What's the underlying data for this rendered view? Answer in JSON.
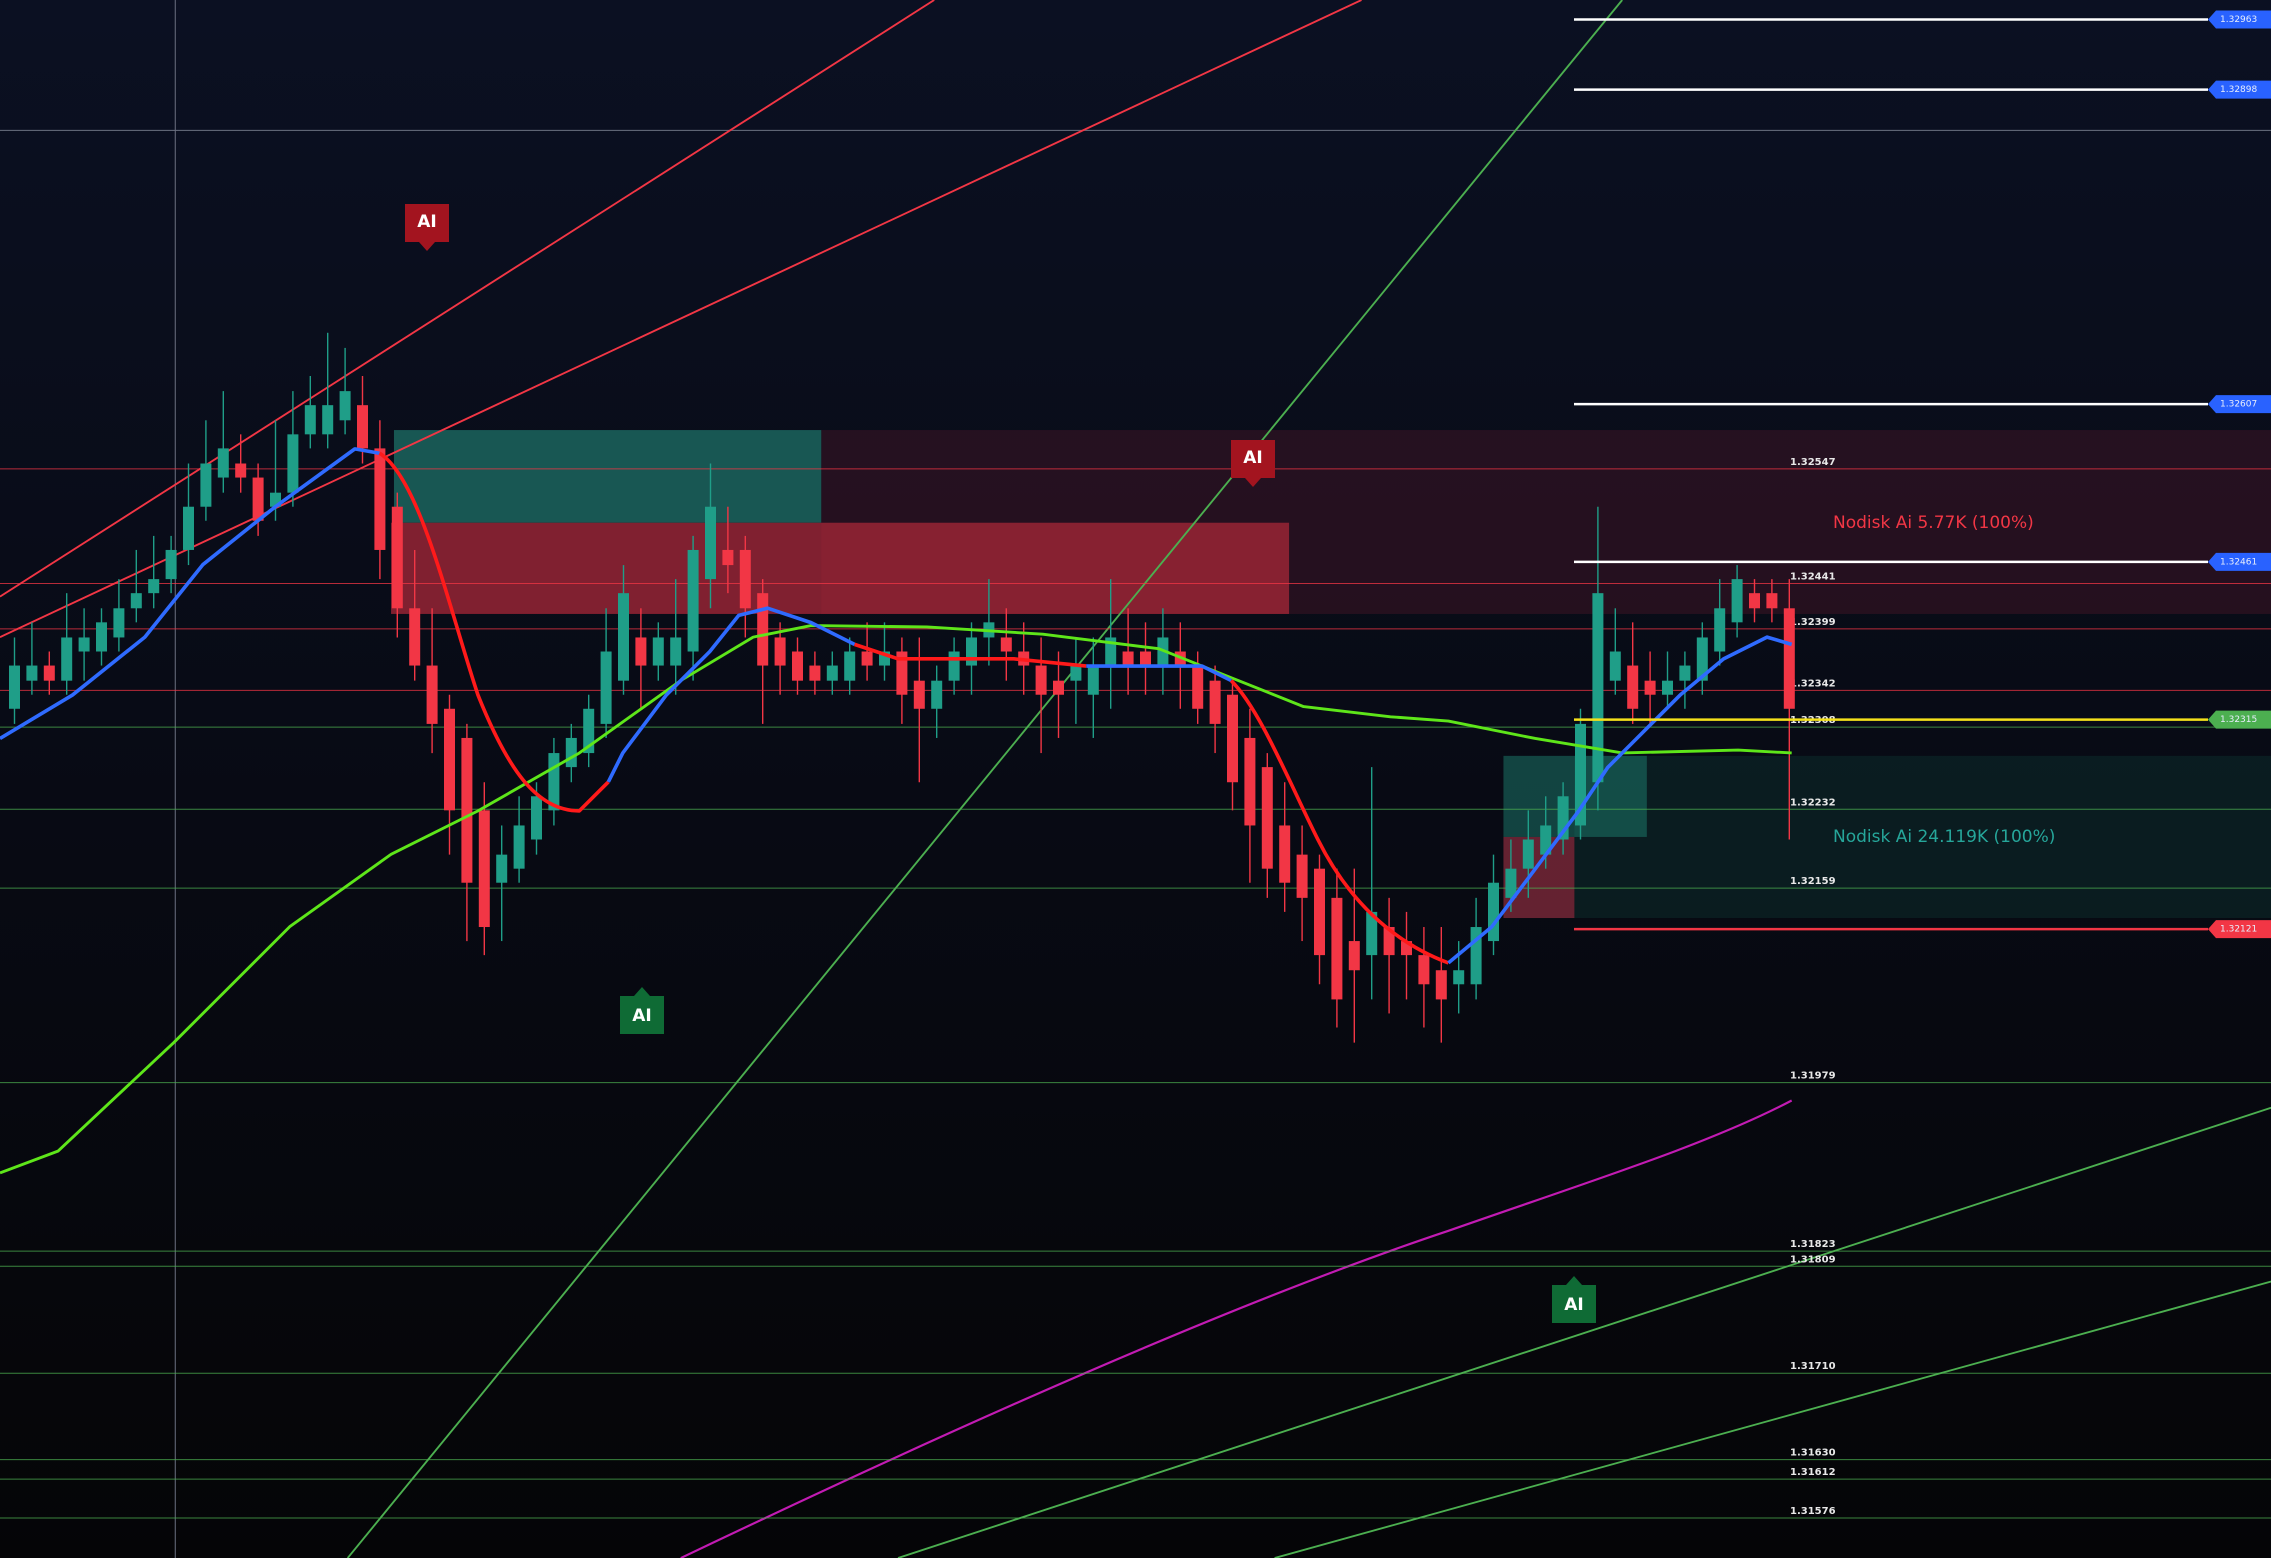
{
  "chart_data": {
    "type": "candlestick",
    "ylim": [
      1.31539,
      1.32981
    ],
    "up_color": "#1f9e88",
    "down_color": "#f23645",
    "candles": {
      "open": [
        1.32325,
        1.32351,
        1.32365,
        1.32351,
        1.32378,
        1.32378,
        1.32391,
        1.32418,
        1.32432,
        1.32445,
        1.32472,
        1.32512,
        1.32539,
        1.32552,
        1.32539,
        1.32512,
        1.32525,
        1.32579,
        1.32579,
        1.32592,
        1.32606,
        1.32566,
        1.32512,
        1.32418,
        1.32365,
        1.32325,
        1.32298,
        1.32231,
        1.32164,
        1.32177,
        1.32204,
        1.32231,
        1.32271,
        1.32284,
        1.32311,
        1.32351,
        1.32391,
        1.32365,
        1.32365,
        1.32378,
        1.32445,
        1.32472,
        1.32472,
        1.32432,
        1.32391,
        1.32378,
        1.32365,
        1.32351,
        1.32351,
        1.32378,
        1.32365,
        1.32378,
        1.32351,
        1.32325,
        1.32351,
        1.32365,
        1.32391,
        1.32391,
        1.32378,
        1.32365,
        1.32351,
        1.32351,
        1.32338,
        1.32365,
        1.32378,
        1.32378,
        1.32365,
        1.32378,
        1.32365,
        1.32351,
        1.32338,
        1.32298,
        1.32271,
        1.32217,
        1.3219,
        1.32177,
        1.3215,
        1.3211,
        1.32097,
        1.32123,
        1.3211,
        1.32097,
        1.32083,
        1.3207,
        1.3207,
        1.3211,
        1.3215,
        1.32177,
        1.3219,
        1.32204,
        1.32217,
        1.32257,
        1.32351,
        1.32365,
        1.32351,
        1.32338,
        1.32351,
        1.32351,
        1.32378,
        1.32405,
        1.32432,
        1.32432,
        1.32418
      ],
      "high": [
        1.32391,
        1.32405,
        1.32378,
        1.32432,
        1.32418,
        1.32418,
        1.32445,
        1.32472,
        1.32485,
        1.32485,
        1.32552,
        1.32592,
        1.32619,
        1.32579,
        1.32552,
        1.32592,
        1.32619,
        1.32633,
        1.32673,
        1.32659,
        1.32633,
        1.32592,
        1.32525,
        1.32472,
        1.32418,
        1.32338,
        1.32311,
        1.32257,
        1.32217,
        1.32244,
        1.32257,
        1.32298,
        1.32311,
        1.32338,
        1.32418,
        1.32458,
        1.32418,
        1.32405,
        1.32445,
        1.32485,
        1.32552,
        1.32512,
        1.32485,
        1.32445,
        1.32405,
        1.32391,
        1.32378,
        1.32378,
        1.32391,
        1.32405,
        1.32405,
        1.32391,
        1.32391,
        1.32365,
        1.32391,
        1.32405,
        1.32445,
        1.32418,
        1.32405,
        1.32391,
        1.32378,
        1.32391,
        1.32391,
        1.32445,
        1.32418,
        1.32405,
        1.32418,
        1.32405,
        1.32378,
        1.32365,
        1.32351,
        1.32325,
        1.32284,
        1.32257,
        1.32217,
        1.3219,
        1.32177,
        1.32177,
        1.32271,
        1.3215,
        1.32137,
        1.32123,
        1.32123,
        1.3211,
        1.3215,
        1.3219,
        1.32204,
        1.32231,
        1.32244,
        1.32257,
        1.32325,
        1.32512,
        1.32418,
        1.32405,
        1.32378,
        1.32378,
        1.32378,
        1.32405,
        1.32445,
        1.32458,
        1.32445,
        1.32445,
        1.32445
      ],
      "low": [
        1.32311,
        1.32338,
        1.32338,
        1.32338,
        1.32351,
        1.32365,
        1.32378,
        1.32405,
        1.32418,
        1.32432,
        1.32458,
        1.32499,
        1.32525,
        1.32525,
        1.32485,
        1.32499,
        1.32512,
        1.32566,
        1.32566,
        1.32579,
        1.32552,
        1.32445,
        1.32391,
        1.32351,
        1.32284,
        1.3219,
        1.3211,
        1.32097,
        1.3211,
        1.32164,
        1.3219,
        1.32217,
        1.32257,
        1.32271,
        1.32298,
        1.32338,
        1.32325,
        1.32351,
        1.32338,
        1.32351,
        1.32418,
        1.32432,
        1.32391,
        1.32311,
        1.32338,
        1.32338,
        1.32338,
        1.32338,
        1.32338,
        1.32351,
        1.32351,
        1.32311,
        1.32257,
        1.32298,
        1.32338,
        1.32338,
        1.32365,
        1.32351,
        1.32338,
        1.32284,
        1.32298,
        1.32311,
        1.32298,
        1.32325,
        1.32338,
        1.32338,
        1.32338,
        1.32325,
        1.32311,
        1.32284,
        1.32231,
        1.32164,
        1.3215,
        1.32137,
        1.3211,
        1.3207,
        1.3203,
        1.32016,
        1.32056,
        1.32043,
        1.32056,
        1.3203,
        1.32016,
        1.32043,
        1.32056,
        1.32097,
        1.32137,
        1.3215,
        1.32177,
        1.3219,
        1.32204,
        1.32231,
        1.32338,
        1.32311,
        1.32311,
        1.32325,
        1.32325,
        1.32338,
        1.32365,
        1.32391,
        1.32405,
        1.32405,
        1.32204
      ],
      "close": [
        1.32365,
        1.32365,
        1.32351,
        1.32391,
        1.32391,
        1.32405,
        1.32418,
        1.32432,
        1.32445,
        1.32472,
        1.32512,
        1.32552,
        1.32566,
        1.32539,
        1.32499,
        1.32525,
        1.32579,
        1.32606,
        1.32606,
        1.32619,
        1.32566,
        1.32472,
        1.32418,
        1.32365,
        1.32311,
        1.32231,
        1.32164,
        1.32123,
        1.3219,
        1.32217,
        1.32244,
        1.32284,
        1.32298,
        1.32325,
        1.32378,
        1.32432,
        1.32365,
        1.32391,
        1.32391,
        1.32472,
        1.32512,
        1.32458,
        1.32418,
        1.32365,
        1.32365,
        1.32351,
        1.32351,
        1.32365,
        1.32378,
        1.32365,
        1.32378,
        1.32338,
        1.32325,
        1.32351,
        1.32378,
        1.32391,
        1.32405,
        1.32378,
        1.32365,
        1.32338,
        1.32338,
        1.32365,
        1.32365,
        1.32391,
        1.32365,
        1.32365,
        1.32391,
        1.32365,
        1.32325,
        1.32311,
        1.32257,
        1.32217,
        1.32177,
        1.32164,
        1.3215,
        1.32097,
        1.32056,
        1.32083,
        1.32137,
        1.32097,
        1.32097,
        1.3207,
        1.32056,
        1.32083,
        1.32123,
        1.32164,
        1.32177,
        1.32204,
        1.32217,
        1.32244,
        1.32311,
        1.32432,
        1.32378,
        1.32325,
        1.32338,
        1.32351,
        1.32365,
        1.32391,
        1.32418,
        1.32445,
        1.32418,
        1.32418,
        1.32325
      ]
    },
    "levels": [
      {
        "value": 1.32547,
        "label": "1.32547",
        "color": "#f23645"
      },
      {
        "value": 1.32441,
        "label": "1.32441",
        "color": "#f23645"
      },
      {
        "value": 1.32399,
        "label": "1.32399",
        "color": "#f23645"
      },
      {
        "value": 1.32342,
        "label": "1.32342",
        "color": "#f23645"
      },
      {
        "value": 1.32308,
        "label": "1.32308",
        "color": "#4caf50"
      },
      {
        "value": 1.32232,
        "label": "1.32232",
        "color": "#4caf50"
      },
      {
        "value": 1.32159,
        "label": "1.32159",
        "color": "#4caf50"
      },
      {
        "value": 1.31979,
        "label": "1.31979",
        "color": "#4caf50"
      },
      {
        "value": 1.31823,
        "label": "1.31823",
        "color": "#4caf50"
      },
      {
        "value": 1.31809,
        "label": "1.31809",
        "color": "#4caf50"
      },
      {
        "value": 1.3171,
        "label": "1.31710",
        "color": "#4caf50"
      },
      {
        "value": 1.3163,
        "label": "1.31630",
        "color": "#4caf50"
      },
      {
        "value": 1.31612,
        "label": "1.31612",
        "color": "#4caf50"
      },
      {
        "value": 1.31576,
        "label": "1.31576",
        "color": "#4caf50"
      }
    ],
    "price_tags": [
      {
        "value": 1.32963,
        "color": "#2962ff",
        "line_color": "#ffffff"
      },
      {
        "value": 1.32898,
        "color": "#2962ff",
        "line_color": "#ffffff"
      },
      {
        "value": 1.32607,
        "color": "#2962ff",
        "line_color": "#ffffff"
      },
      {
        "value": 1.32461,
        "color": "#2962ff",
        "line_color": "#ffffff"
      },
      {
        "value": 1.32315,
        "color": "#4caf50",
        "line_color": "#f5e11b"
      },
      {
        "value": 1.32121,
        "color": "#f23645",
        "line_color": "#f23645"
      }
    ],
    "badges": [
      "AI",
      "AI",
      "AI",
      "AI"
    ],
    "annotations": [
      "Nodisk Ai 5.77K (100%)",
      "Nodisk Ai 24.119K (100%)"
    ]
  }
}
